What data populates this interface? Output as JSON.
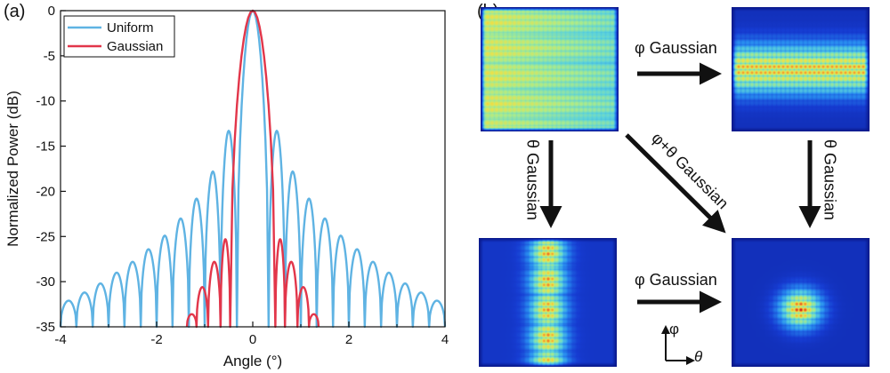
{
  "panel_a_label": "(a)",
  "panel_b_label": "(b)",
  "colors": {
    "uniform": "#5fb3e3",
    "gaussian": "#e2364a"
  },
  "chart_data": {
    "type": "line",
    "xlabel": "Angle (°)",
    "ylabel": "Normalized Power (dB)",
    "xlim": [
      -4,
      4
    ],
    "ylim": [
      -35,
      0
    ],
    "xticks": [
      -4,
      -2,
      0,
      2,
      4
    ],
    "yticks": [
      0,
      -5,
      -10,
      -15,
      -20,
      -25,
      -30,
      -35
    ],
    "legend_position": "top-left",
    "series": [
      {
        "name": "Uniform",
        "color": "#5fb3e3",
        "x": [
          0,
          0.33,
          0.5,
          0.67,
          0.83,
          1.0,
          1.17,
          1.33,
          1.5,
          1.67,
          1.83,
          2.0,
          2.17,
          2.33,
          2.5,
          2.67,
          2.83,
          3.0,
          3.17,
          3.33,
          3.5,
          3.67,
          3.83,
          4.0
        ],
        "y": [
          0,
          -35,
          -13.3,
          -35,
          -17.8,
          -35,
          -20.8,
          -35,
          -23.0,
          -35,
          -24.9,
          -35,
          -26.4,
          -35,
          -27.8,
          -35,
          -29.0,
          -35,
          -30.2,
          -35,
          -31.2,
          -35,
          -32.1,
          -35
        ]
      },
      {
        "name": "Gaussian",
        "color": "#e2364a",
        "x": [
          0,
          0.47,
          0.57,
          0.67,
          0.8,
          0.93,
          1.05,
          1.17,
          1.27,
          1.37
        ],
        "y": [
          0,
          -35,
          -25.3,
          -35,
          -27.8,
          -35,
          -30.6,
          -35,
          -33.6,
          -35
        ]
      }
    ]
  },
  "arrows": {
    "top": "φ Gaussian",
    "left": "θ Gaussian",
    "diagonal": "φ+θ Gaussian",
    "right": "θ Gaussian",
    "bottom": "φ Gaussian"
  },
  "coord_axes": {
    "vertical": "φ",
    "horizontal": "θ"
  }
}
